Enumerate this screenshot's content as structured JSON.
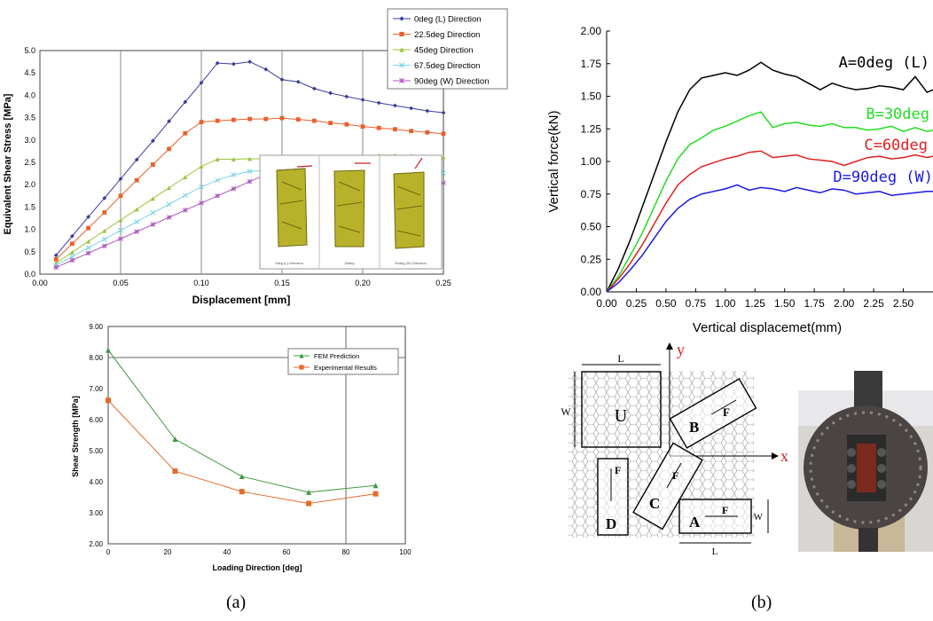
{
  "panel_labels": {
    "a": "(a)",
    "b": "(b)"
  },
  "colors": {
    "s0": "#3b3b9e",
    "s22": "#e8602c",
    "s45": "#9cc23a",
    "s67": "#7fd4e8",
    "s90": "#b05cc0",
    "fem": "#3f9a3f",
    "exp": "#e26b2a",
    "A": "#000000",
    "B": "#22dd22",
    "C": "#e02020",
    "D": "#1a1ae0"
  },
  "chart_data": [
    {
      "type": "line",
      "xlabel": "Displacement [mm]",
      "ylabel": "Equivalent Shear Stress [MPa]",
      "xlim": [
        0,
        0.25
      ],
      "ylim": [
        0,
        5.0
      ],
      "xticks": [
        "0.00",
        "0.05",
        "0.10",
        "0.15",
        "0.20",
        "0.25"
      ],
      "yticks": [
        "0.0",
        "0.5",
        "1.0",
        "1.5",
        "2.0",
        "2.5",
        "3.0",
        "3.5",
        "4.0",
        "4.5",
        "5.0"
      ],
      "legend_position": "top-right",
      "series": [
        {
          "name": "0deg (L) Direction",
          "marker": "diamond",
          "x": [
            0.01,
            0.02,
            0.03,
            0.04,
            0.05,
            0.06,
            0.07,
            0.08,
            0.09,
            0.1,
            0.11,
            0.12,
            0.13,
            0.14,
            0.15,
            0.16,
            0.17,
            0.18,
            0.19,
            0.2,
            0.21,
            0.22,
            0.23,
            0.24,
            0.25
          ],
          "y": [
            0.42,
            0.85,
            1.28,
            1.7,
            2.13,
            2.56,
            2.98,
            3.42,
            3.85,
            4.28,
            4.72,
            4.7,
            4.75,
            4.58,
            4.35,
            4.3,
            4.15,
            4.05,
            3.97,
            3.9,
            3.83,
            3.77,
            3.71,
            3.65,
            3.61
          ]
        },
        {
          "name": "22.5deg Direction",
          "marker": "square",
          "x": [
            0.01,
            0.02,
            0.03,
            0.04,
            0.05,
            0.06,
            0.07,
            0.08,
            0.09,
            0.1,
            0.11,
            0.12,
            0.13,
            0.14,
            0.15,
            0.16,
            0.17,
            0.18,
            0.19,
            0.2,
            0.21,
            0.22,
            0.23,
            0.24,
            0.25
          ],
          "y": [
            0.33,
            0.68,
            1.03,
            1.38,
            1.75,
            2.1,
            2.45,
            2.8,
            3.15,
            3.4,
            3.43,
            3.45,
            3.47,
            3.47,
            3.49,
            3.46,
            3.43,
            3.38,
            3.35,
            3.3,
            3.27,
            3.24,
            3.2,
            3.17,
            3.14
          ]
        },
        {
          "name": "45deg Direction",
          "marker": "triangle",
          "x": [
            0.01,
            0.02,
            0.03,
            0.04,
            0.05,
            0.06,
            0.07,
            0.08,
            0.09,
            0.1,
            0.11,
            0.12,
            0.13,
            0.14,
            0.15,
            0.16,
            0.17,
            0.18,
            0.19,
            0.2,
            0.21,
            0.22,
            0.23,
            0.24,
            0.25
          ],
          "y": [
            0.25,
            0.49,
            0.73,
            0.97,
            1.21,
            1.45,
            1.69,
            1.93,
            2.17,
            2.41,
            2.57,
            2.57,
            2.58,
            2.58,
            2.58,
            2.59,
            2.6,
            2.62,
            2.63,
            2.65,
            2.66,
            2.66,
            2.65,
            2.64,
            2.62
          ]
        },
        {
          "name": "67.5deg Direction",
          "marker": "x",
          "x": [
            0.01,
            0.02,
            0.03,
            0.04,
            0.05,
            0.06,
            0.07,
            0.08,
            0.09,
            0.1,
            0.11,
            0.12,
            0.13,
            0.14,
            0.15,
            0.16,
            0.17,
            0.18,
            0.19,
            0.2,
            0.21,
            0.22,
            0.23,
            0.24,
            0.25
          ],
          "y": [
            0.2,
            0.39,
            0.59,
            0.78,
            0.98,
            1.17,
            1.37,
            1.56,
            1.76,
            1.95,
            2.1,
            2.22,
            2.3,
            2.32,
            2.32,
            2.31,
            2.3,
            2.3,
            2.3,
            2.29,
            2.28,
            2.28,
            2.27,
            2.26,
            2.26
          ]
        },
        {
          "name": "90deg (W) Direction",
          "marker": "star",
          "x": [
            0.01,
            0.02,
            0.03,
            0.04,
            0.05,
            0.06,
            0.07,
            0.08,
            0.09,
            0.1,
            0.11,
            0.12,
            0.13,
            0.14,
            0.15,
            0.16,
            0.17,
            0.18,
            0.19,
            0.2,
            0.21,
            0.22,
            0.23,
            0.24,
            0.25
          ],
          "y": [
            0.15,
            0.31,
            0.47,
            0.63,
            0.79,
            0.95,
            1.11,
            1.27,
            1.43,
            1.59,
            1.75,
            1.91,
            2.07,
            2.23,
            2.36,
            2.34,
            2.3,
            2.26,
            2.22,
            2.18,
            2.15,
            2.12,
            2.09,
            2.06,
            2.04
          ]
        }
      ],
      "inset_labels": [
        "0deg (L) Direction",
        "45deg",
        "90deg (W) Direction"
      ]
    },
    {
      "type": "line",
      "xlabel": "Loading Direction [deg]",
      "ylabel": "Shear Strength [MPa]",
      "xlim": [
        0,
        100
      ],
      "ylim": [
        2.0,
        9.0
      ],
      "xticks": [
        "0",
        "20",
        "40",
        "60",
        "80",
        "100"
      ],
      "yticks": [
        "2.00",
        "3.00",
        "4.00",
        "5.00",
        "6.00",
        "7.00",
        "8.00",
        "9.00"
      ],
      "legend_position": "top-right",
      "series": [
        {
          "name": "FEM Prediction",
          "marker": "triangle",
          "x": [
            0,
            22.5,
            45,
            67.5,
            90
          ],
          "y": [
            8.24,
            5.37,
            4.17,
            3.66,
            3.88
          ]
        },
        {
          "name": "Experimental Results",
          "marker": "square",
          "x": [
            0,
            22.5,
            45,
            67.5,
            90
          ],
          "y": [
            6.62,
            4.34,
            3.68,
            3.3,
            3.61
          ]
        }
      ]
    },
    {
      "type": "line",
      "xlabel": "Vertical displacemet(mm)",
      "ylabel": "Vertical force(kN)",
      "xlim": [
        0,
        2.75
      ],
      "ylim": [
        0,
        2.0
      ],
      "xticks": [
        "0.00",
        "0.25",
        "0.50",
        "0.75",
        "1.00",
        "1.25",
        "1.50",
        "1.75",
        "2.00",
        "2.25",
        "2.50"
      ],
      "yticks": [
        "0.00",
        "0.25",
        "0.50",
        "0.75",
        "1.00",
        "1.25",
        "1.50",
        "1.75",
        "2.00"
      ],
      "series": [
        {
          "name": "A=0deg (L)",
          "x": [
            0,
            0.1,
            0.2,
            0.3,
            0.4,
            0.5,
            0.6,
            0.7,
            0.8,
            0.9,
            1.0,
            1.1,
            1.2,
            1.3,
            1.4,
            1.5,
            1.6,
            1.7,
            1.8,
            1.9,
            2.0,
            2.1,
            2.2,
            2.3,
            2.4,
            2.5,
            2.6,
            2.7,
            2.75
          ],
          "y": [
            0,
            0.18,
            0.4,
            0.65,
            0.9,
            1.15,
            1.38,
            1.55,
            1.64,
            1.66,
            1.68,
            1.66,
            1.7,
            1.76,
            1.7,
            1.67,
            1.65,
            1.6,
            1.55,
            1.6,
            1.57,
            1.55,
            1.56,
            1.58,
            1.57,
            1.55,
            1.65,
            1.53,
            1.55
          ]
        },
        {
          "name": "B=30deg",
          "x": [
            0,
            0.1,
            0.2,
            0.3,
            0.4,
            0.5,
            0.6,
            0.7,
            0.8,
            0.9,
            1.0,
            1.1,
            1.2,
            1.3,
            1.4,
            1.5,
            1.6,
            1.7,
            1.8,
            1.9,
            2.0,
            2.1,
            2.2,
            2.3,
            2.4,
            2.5,
            2.6,
            2.7,
            2.75
          ],
          "y": [
            0,
            0.12,
            0.28,
            0.45,
            0.65,
            0.85,
            1.02,
            1.13,
            1.18,
            1.24,
            1.27,
            1.31,
            1.35,
            1.38,
            1.26,
            1.29,
            1.3,
            1.28,
            1.27,
            1.29,
            1.26,
            1.26,
            1.24,
            1.25,
            1.27,
            1.23,
            1.26,
            1.23,
            1.24
          ]
        },
        {
          "name": "C=60deg",
          "x": [
            0,
            0.1,
            0.2,
            0.3,
            0.4,
            0.5,
            0.6,
            0.7,
            0.8,
            0.9,
            1.0,
            1.1,
            1.2,
            1.3,
            1.4,
            1.5,
            1.6,
            1.7,
            1.8,
            1.9,
            2.0,
            2.1,
            2.2,
            2.3,
            2.4,
            2.5,
            2.6,
            2.7,
            2.75
          ],
          "y": [
            0,
            0.1,
            0.22,
            0.36,
            0.52,
            0.68,
            0.82,
            0.9,
            0.96,
            0.99,
            1.02,
            1.04,
            1.07,
            1.08,
            1.03,
            1.04,
            1.05,
            1.02,
            1.01,
            1.0,
            0.97,
            1.0,
            1.03,
            1.04,
            1.02,
            1.03,
            1.05,
            1.03,
            1.04
          ]
        },
        {
          "name": "D=90deg (W)",
          "x": [
            0,
            0.1,
            0.2,
            0.3,
            0.4,
            0.5,
            0.6,
            0.7,
            0.8,
            0.9,
            1.0,
            1.1,
            1.2,
            1.3,
            1.4,
            1.5,
            1.6,
            1.7,
            1.8,
            1.9,
            2.0,
            2.1,
            2.2,
            2.3,
            2.4,
            2.5,
            2.6,
            2.7,
            2.75
          ],
          "y": [
            0,
            0.07,
            0.17,
            0.28,
            0.41,
            0.54,
            0.64,
            0.71,
            0.75,
            0.77,
            0.79,
            0.82,
            0.78,
            0.8,
            0.79,
            0.77,
            0.8,
            0.78,
            0.76,
            0.79,
            0.78,
            0.75,
            0.76,
            0.77,
            0.74,
            0.75,
            0.76,
            0.77,
            0.77
          ]
        }
      ]
    }
  ],
  "diagram": {
    "labels": {
      "L": "L",
      "W": "W",
      "U": "U",
      "B": "B",
      "C": "C",
      "D": "D",
      "A": "A",
      "y": "y",
      "x": "x",
      "F": "F",
      "Wsmall": "W",
      "Lsmall": "L"
    }
  }
}
